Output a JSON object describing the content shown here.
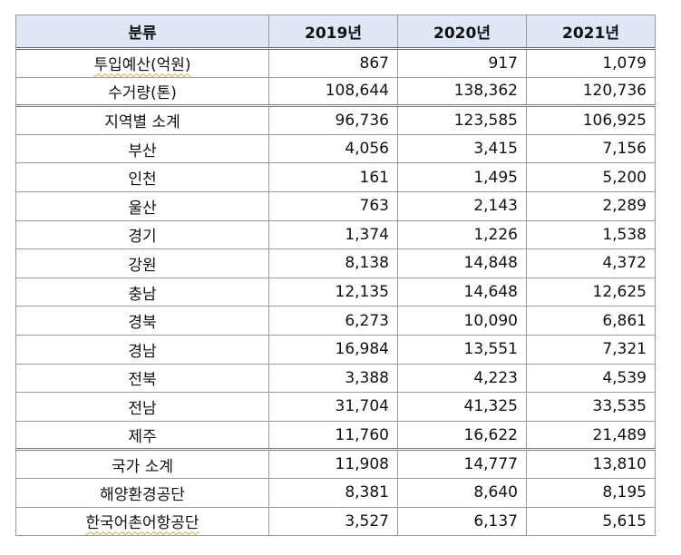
{
  "table": {
    "headers": [
      "분류",
      "2019년",
      "2020년",
      "2021년"
    ],
    "rows": [
      {
        "name": "투입예산(억원)",
        "values": [
          "867",
          "917",
          "1,079"
        ]
      },
      {
        "name": "수거량(톤)",
        "values": [
          "108,644",
          "138,362",
          "120,736"
        ]
      },
      {
        "name": "지역별 소계",
        "values": [
          "96,736",
          "123,585",
          "106,925"
        ]
      },
      {
        "name": "부산",
        "values": [
          "4,056",
          "3,415",
          "7,156"
        ]
      },
      {
        "name": "인천",
        "values": [
          "161",
          "1,495",
          "5,200"
        ]
      },
      {
        "name": "울산",
        "values": [
          "763",
          "2,143",
          "2,289"
        ]
      },
      {
        "name": "경기",
        "values": [
          "1,374",
          "1,226",
          "1,538"
        ]
      },
      {
        "name": "강원",
        "values": [
          "8,138",
          "14,848",
          "4,372"
        ]
      },
      {
        "name": "충남",
        "values": [
          "12,135",
          "14,648",
          "12,625"
        ]
      },
      {
        "name": "경북",
        "values": [
          "6,273",
          "10,090",
          "6,861"
        ]
      },
      {
        "name": "경남",
        "values": [
          "16,984",
          "13,551",
          "7,321"
        ]
      },
      {
        "name": "전북",
        "values": [
          "3,388",
          "4,223",
          "4,539"
        ]
      },
      {
        "name": "전남",
        "values": [
          "31,704",
          "41,325",
          "33,535"
        ]
      },
      {
        "name": "제주",
        "values": [
          "11,760",
          "16,622",
          "21,489"
        ]
      },
      {
        "name": "국가 소계",
        "values": [
          "11,908",
          "14,777",
          "13,810"
        ]
      },
      {
        "name": "해양환경공단",
        "values": [
          "8,381",
          "8,640",
          "8,195"
        ]
      },
      {
        "name": "한국어촌어항공단",
        "values": [
          "3,527",
          "6,137",
          "5,615"
        ]
      }
    ]
  }
}
